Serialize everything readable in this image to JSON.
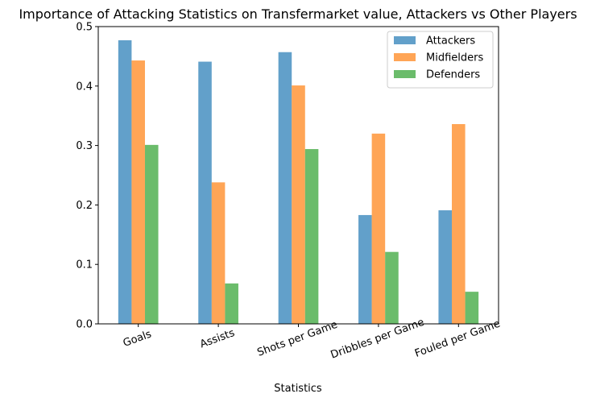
{
  "chart_data": {
    "type": "bar",
    "title": "Importance of Attacking Statistics on Transfermarket value, Attackers vs Other Players",
    "xlabel": "Statistics",
    "ylabel": "",
    "categories": [
      "Goals",
      "Assists",
      "Shots per Game",
      "Dribbles per Game",
      "Fouled per Game"
    ],
    "series": [
      {
        "name": "Attackers",
        "color": "#1f77b4",
        "values": [
          0.477,
          0.441,
          0.457,
          0.183,
          0.191
        ]
      },
      {
        "name": "Midfielders",
        "color": "#ff7f0e",
        "values": [
          0.443,
          0.238,
          0.401,
          0.32,
          0.336
        ]
      },
      {
        "name": "Defenders",
        "color": "#2ca02c",
        "values": [
          0.301,
          0.068,
          0.294,
          0.121,
          0.054
        ]
      }
    ],
    "ylim": [
      0,
      0.5
    ],
    "yticks": [
      "0.0",
      "0.1",
      "0.2",
      "0.3",
      "0.4",
      "0.5"
    ],
    "bar_opacity": 0.7,
    "grid": false,
    "legend_position": "top-right",
    "xtick_rotation_deg": 20
  }
}
